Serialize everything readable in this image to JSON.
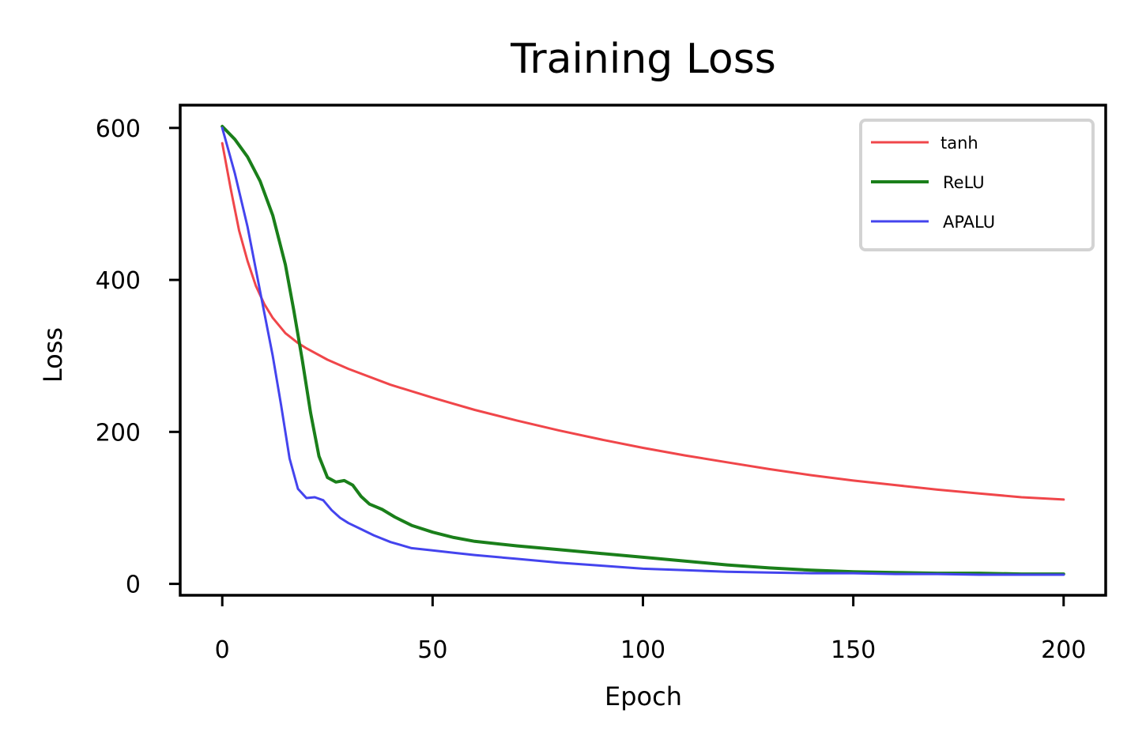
{
  "chart_data": {
    "type": "line",
    "title": "Training Loss",
    "xlabel": "Epoch",
    "ylabel": "Loss",
    "xlim": [
      -10,
      210
    ],
    "ylim": [
      -15,
      630
    ],
    "xticks": [
      0,
      50,
      100,
      150,
      200
    ],
    "yticks": [
      0,
      200,
      400,
      600
    ],
    "grid": false,
    "legend_position": "top-right",
    "series": [
      {
        "name": "tanh",
        "color": "#f0464a",
        "x": [
          0,
          2,
          4,
          6,
          8,
          10,
          12,
          15,
          18,
          20,
          25,
          30,
          40,
          50,
          60,
          70,
          80,
          90,
          100,
          110,
          120,
          130,
          140,
          150,
          160,
          170,
          180,
          190,
          200
        ],
        "y": [
          580,
          520,
          465,
          425,
          392,
          368,
          350,
          330,
          317,
          310,
          295,
          283,
          262,
          245,
          229,
          215,
          202,
          190,
          179,
          169,
          160,
          151,
          143,
          136,
          130,
          124,
          119,
          114,
          111
        ]
      },
      {
        "name": "ReLU",
        "color": "#1a7f1a",
        "x": [
          0,
          3,
          6,
          9,
          12,
          15,
          17,
          19,
          21,
          23,
          25,
          27,
          29,
          31,
          33,
          35,
          38,
          41,
          45,
          50,
          55,
          60,
          70,
          80,
          90,
          100,
          110,
          120,
          130,
          140,
          150,
          160,
          170,
          180,
          190,
          200
        ],
        "y": [
          602,
          585,
          562,
          530,
          485,
          420,
          360,
          295,
          225,
          168,
          140,
          134,
          136,
          130,
          115,
          105,
          98,
          88,
          77,
          68,
          61,
          56,
          50,
          45,
          40,
          35,
          30,
          25,
          21,
          18,
          16,
          15,
          14,
          14,
          13,
          13
        ]
      },
      {
        "name": "APALU",
        "color": "#4444ee",
        "x": [
          0,
          3,
          6,
          9,
          12,
          14,
          16,
          18,
          20,
          22,
          24,
          26,
          28,
          30,
          33,
          36,
          40,
          45,
          50,
          55,
          60,
          70,
          80,
          90,
          100,
          110,
          120,
          130,
          140,
          150,
          160,
          170,
          180,
          190,
          200
        ],
        "y": [
          600,
          540,
          470,
          385,
          300,
          235,
          165,
          125,
          113,
          114,
          110,
          97,
          87,
          80,
          72,
          64,
          55,
          47,
          44,
          41,
          38,
          33,
          28,
          24,
          20,
          18,
          16,
          15,
          14,
          14,
          13,
          13,
          12,
          12,
          12
        ]
      }
    ]
  }
}
